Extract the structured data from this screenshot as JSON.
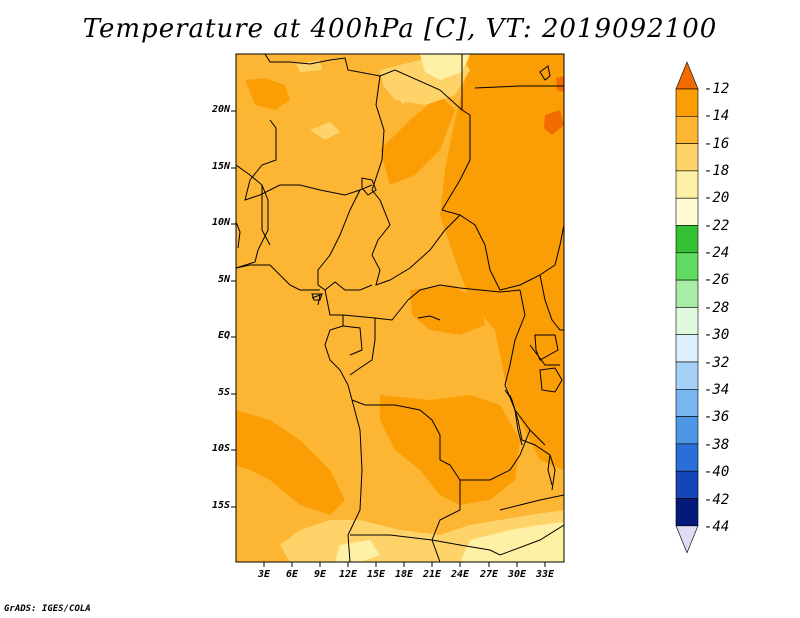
{
  "title": "Temperature at 400hPa [C], VT: 2019092100",
  "credit": "GrADS: IGES/COLA",
  "lat_labels": [
    "20N",
    "15N",
    "10N",
    "5N",
    "EQ",
    "5S",
    "10S",
    "15S"
  ],
  "lon_labels": [
    "3E",
    "6E",
    "9E",
    "12E",
    "15E",
    "18E",
    "21E",
    "24E",
    "27E",
    "30E",
    "33E"
  ],
  "colorbar": {
    "labels": [
      "-12",
      "-14",
      "-16",
      "-18",
      "-20",
      "-22",
      "-24",
      "-26",
      "-28",
      "-30",
      "-32",
      "-34",
      "-36",
      "-38",
      "-40",
      "-42",
      "-44"
    ],
    "colors": [
      "#f26b00",
      "#fb9e05",
      "#fdb634",
      "#fed46a",
      "#fef0a4",
      "#fffbd2",
      "#34c134",
      "#60da60",
      "#a8eca6",
      "#e0fae0",
      "#ddeefc",
      "#a5d1f7",
      "#79b5ef",
      "#4e96e6",
      "#2b6ed7",
      "#1546b8",
      "#051a78",
      "#dcdcf5"
    ]
  },
  "map_colors": {
    "base": "#fdb634",
    "warm": "#fb9e05",
    "hot": "#f26b00",
    "cool": "#fed46a",
    "coolest": "#fef0a4"
  }
}
